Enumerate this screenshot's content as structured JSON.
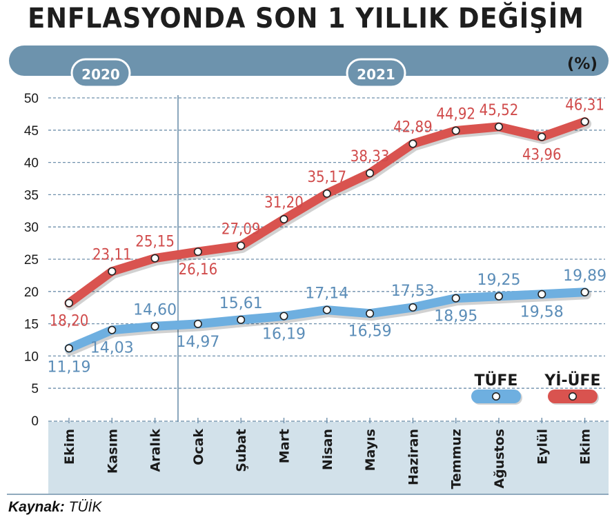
{
  "title": "ENFLASYONDA SON 1 YILLIK DEĞİŞİM",
  "unit": "(%)",
  "years": [
    {
      "label": "2020",
      "from": 0,
      "to": 2
    },
    {
      "label": "2021",
      "from": 3,
      "to": 12
    }
  ],
  "source_label": "Kaynak:",
  "source_value": "TÜİK",
  "colors": {
    "tufe": "#6eafe0",
    "yiufe": "#d9534f",
    "band": "#6d93ad",
    "axis_bg": "#d2e1ea"
  },
  "chart_data": {
    "type": "line",
    "categories": [
      "Ekim",
      "Kasım",
      "Aralık",
      "Ocak",
      "Şubat",
      "Mart",
      "Nisan",
      "Mayıs",
      "Haziran",
      "Temmuz",
      "Ağustos",
      "Eylül",
      "Ekim"
    ],
    "series": [
      {
        "name": "YI-ÜFE",
        "values": [
          18.2,
          23.11,
          25.15,
          26.16,
          27.09,
          31.2,
          35.17,
          38.33,
          42.89,
          44.92,
          45.52,
          43.96,
          46.31
        ],
        "labels": [
          "18,20",
          "23,11",
          "25,15",
          "26,16",
          "27,09",
          "31,20",
          "35,17",
          "38,33",
          "42,89",
          "44,92",
          "45,52",
          "43,96",
          "46,31"
        ]
      },
      {
        "name": "TÜFE",
        "values": [
          11.19,
          14.03,
          14.6,
          14.97,
          15.61,
          16.19,
          17.14,
          16.59,
          17.53,
          18.95,
          19.25,
          19.58,
          19.89
        ],
        "labels": [
          "11,19",
          "14,03",
          "14,60",
          "14,97",
          "15,61",
          "16,19",
          "17,14",
          "16,59",
          "17,53",
          "18,95",
          "19,25",
          "19,58",
          "19,89"
        ]
      }
    ],
    "ylim": [
      0,
      50
    ],
    "yticks": [
      0,
      5,
      10,
      15,
      20,
      25,
      30,
      35,
      40,
      45,
      50
    ],
    "grid": true,
    "legend": "bottom-right",
    "legend_labels": [
      "TÜFE",
      "Yİ-ÜFE"
    ]
  }
}
